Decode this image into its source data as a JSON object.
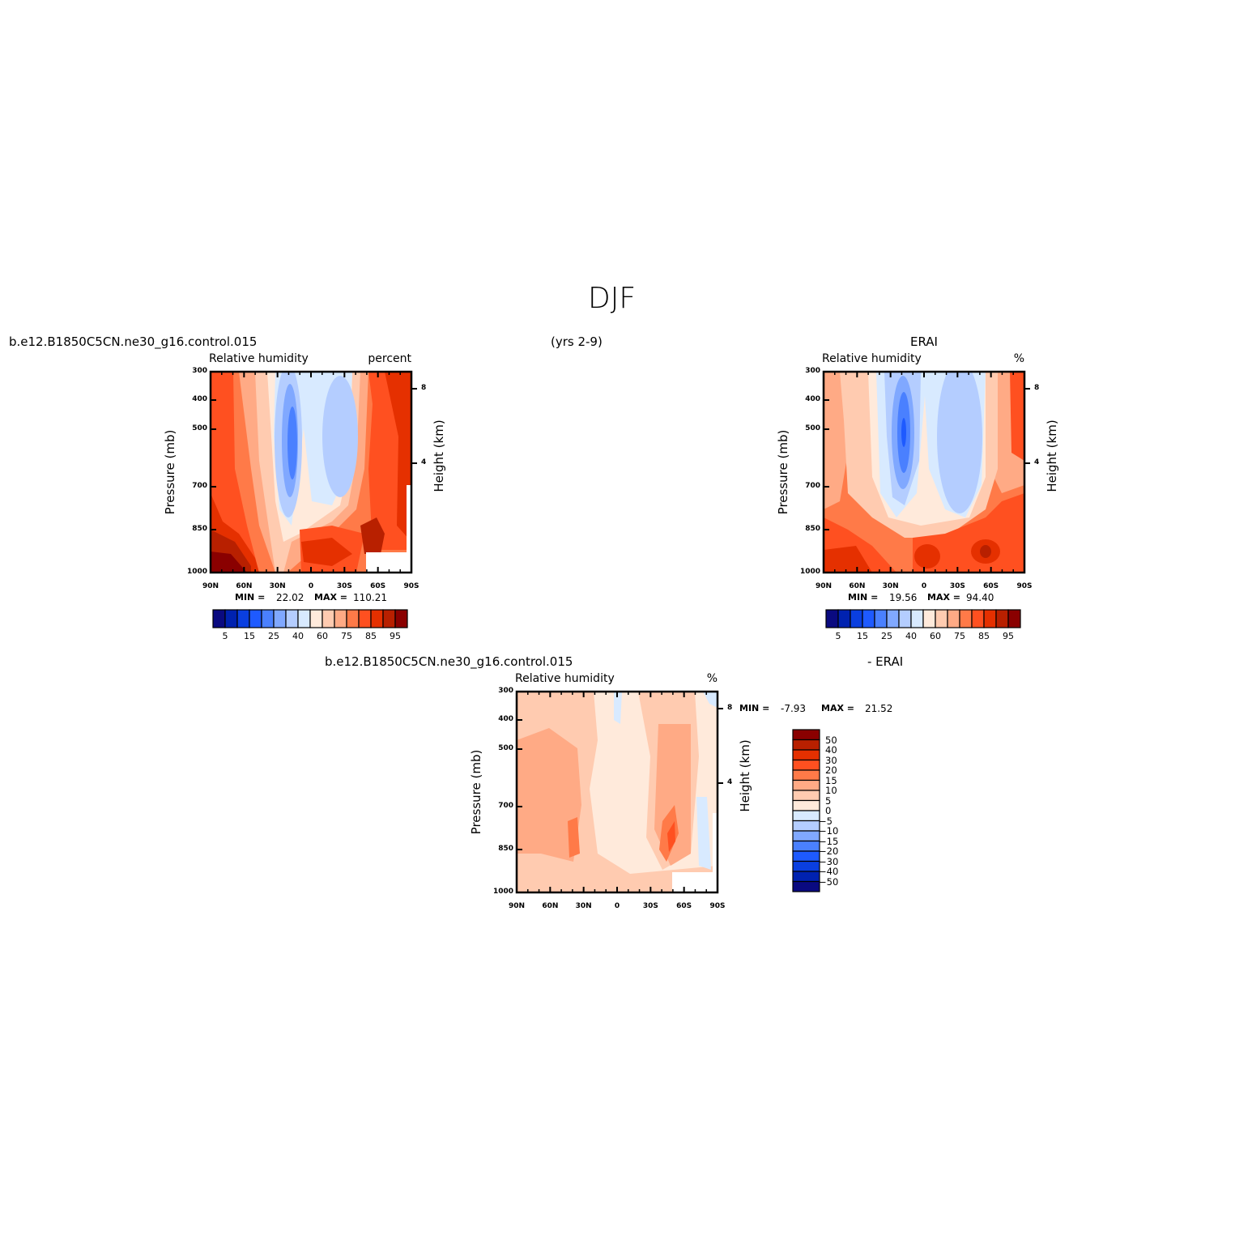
{
  "figure_title": "DJF",
  "header": {
    "left": "b.e12.B1850C5CN.ne30_g16.control.015",
    "center": "(yrs 2-9)",
    "right": "ERAI",
    "diff_left": "b.e12.B1850C5CN.ne30_g16.control.015",
    "diff_right": "- ERAI"
  },
  "colors": {
    "abs_levels": [
      "#0a0a80",
      "#0022b0",
      "#0a3fe0",
      "#1e5aff",
      "#4a80ff",
      "#80a8ff",
      "#b4cdff",
      "#d8eaff",
      "#ffeadb",
      "#ffcbb0",
      "#ffaa85",
      "#ff7a48",
      "#ff5020",
      "#e53000",
      "#b82000",
      "#8a0000"
    ],
    "diff_levels": [
      "#8a0000",
      "#b82000",
      "#e53000",
      "#ff5020",
      "#ff7a48",
      "#ffaa85",
      "#ffcbb0",
      "#ffeadb",
      "#d8eaff",
      "#b4cdff",
      "#80a8ff",
      "#4a80ff",
      "#1e5aff",
      "#0a3fe0",
      "#0022b0",
      "#0a0a80"
    ]
  },
  "chart_data": [
    {
      "type": "heatmap",
      "subtype": "filled-contour",
      "title": "b.e12.B1850C5CN.ne30_g16.control.015",
      "left_string": "Relative humidity",
      "right_string": "percent",
      "xlabel": "",
      "ylabel": "Pressure (mb)",
      "ylabel_right": "Height (km)",
      "x_ticks": [
        "90N",
        "60N",
        "30N",
        "0",
        "30S",
        "60S",
        "90S"
      ],
      "y_ticks": [
        "300",
        "400",
        "500",
        "700",
        "850",
        "1000"
      ],
      "y_right_ticks": [
        "8",
        "4"
      ],
      "ylim": [
        1000,
        300
      ],
      "stats": {
        "min_label": "MIN =",
        "min": "22.02",
        "max_label": "MAX =",
        "max": "110.21"
      },
      "colorbar_labels": [
        "5",
        "15",
        "25",
        "40",
        "60",
        "75",
        "85",
        "95"
      ]
    },
    {
      "type": "heatmap",
      "subtype": "filled-contour",
      "title": "ERAI",
      "left_string": "Relative humidity",
      "right_string": "%",
      "ylabel": "Pressure (mb)",
      "ylabel_right": "Height (km)",
      "x_ticks": [
        "90N",
        "60N",
        "30N",
        "0",
        "30S",
        "60S",
        "90S"
      ],
      "y_ticks": [
        "300",
        "400",
        "500",
        "700",
        "850",
        "1000"
      ],
      "y_right_ticks": [
        "8",
        "4"
      ],
      "ylim": [
        1000,
        300
      ],
      "stats": {
        "min_label": "MIN =",
        "min": "19.56",
        "max_label": "MAX =",
        "max": "94.40"
      },
      "colorbar_labels": [
        "5",
        "15",
        "25",
        "40",
        "60",
        "75",
        "85",
        "95"
      ]
    },
    {
      "type": "heatmap",
      "subtype": "filled-contour",
      "title": "b.e12.B1850C5CN.ne30_g16.control.015 - ERAI",
      "left_string": "Relative humidity",
      "right_string": "%",
      "ylabel": "Pressure (mb)",
      "ylabel_right": "Height (km)",
      "x_ticks": [
        "90N",
        "60N",
        "30N",
        "0",
        "30S",
        "60S",
        "90S"
      ],
      "y_ticks": [
        "300",
        "400",
        "500",
        "700",
        "850",
        "1000"
      ],
      "y_right_ticks": [
        "8",
        "4"
      ],
      "ylim": [
        1000,
        300
      ],
      "stats": {
        "min_label": "MIN =",
        "min": "-7.93",
        "max_label": "MAX =",
        "max": "21.52"
      },
      "colorbar_labels": [
        "50",
        "40",
        "30",
        "20",
        "15",
        "10",
        "5",
        "0",
        "-5",
        "-10",
        "-15",
        "-20",
        "-30",
        "-40",
        "-50"
      ]
    }
  ]
}
